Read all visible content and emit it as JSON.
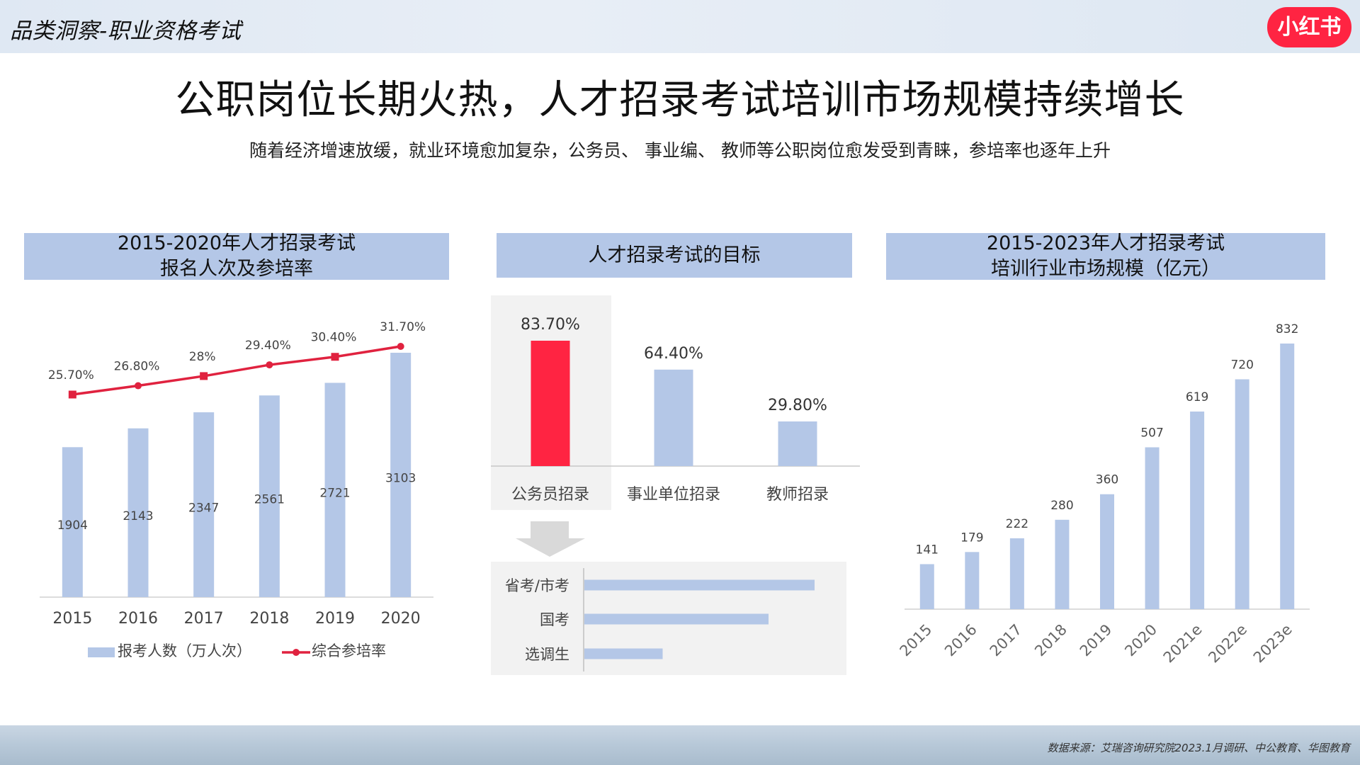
{
  "header": {
    "section_label": "品类洞察-职业资格考试",
    "logo_text": "小红书"
  },
  "headline": "公职岗位长期火热，人才招录考试培训市场规模持续增长",
  "subheadline": "随着经济增速放缓，就业环境愈加复杂，公务员、 事业编、 教师等公职岗位愈发受到青睐，参培率也逐年上升",
  "panels": {
    "left_title_line1": "2015-2020年人才招录考试",
    "left_title_line2": "报名人次及参培率",
    "middle_title": "人才招录考试的目标",
    "right_title_line1": "2015-2023年人才招录考试",
    "right_title_line2": "培训行业市场规模（亿元）"
  },
  "source": "数据来源：艾瑞咨询研究院2023.1月调研、中公教育、华图教育",
  "colors": {
    "bar_blue": "#b4c7e7",
    "line_red": "#e0223f",
    "highlight_red": "#ff2442",
    "panel_bg": "#f2f2f2"
  },
  "chart_data": [
    {
      "type": "bar",
      "categories": [
        "2015",
        "2016",
        "2017",
        "2018",
        "2019",
        "2020"
      ],
      "series": [
        {
          "name": "报考人数（万人次）",
          "type": "bar",
          "values": [
            1904,
            2143,
            2347,
            2561,
            2721,
            3103
          ],
          "labels": [
            "1904",
            "2143",
            "2347",
            "2561",
            "2721",
            "3103"
          ]
        },
        {
          "name": "综合参培率",
          "type": "line",
          "values": [
            25.7,
            26.8,
            28,
            29.4,
            30.4,
            31.7
          ],
          "labels": [
            "25.70%",
            "26.80%",
            "28%",
            "29.40%",
            "30.40%",
            "31.70%"
          ]
        }
      ],
      "legend": "bottom",
      "grid": false
    },
    {
      "type": "bar",
      "categories": [
        "公务员招录",
        "事业单位招录",
        "教师招录"
      ],
      "values": [
        83.7,
        64.4,
        29.8
      ],
      "labels": [
        "83.70%",
        "64.40%",
        "29.80%"
      ],
      "highlight": "公务员招录",
      "grid": false
    },
    {
      "type": "bar",
      "orientation": "horizontal",
      "categories": [
        "省考/市考",
        "国考",
        "选调生"
      ],
      "relative_values": [
        1.0,
        0.8,
        0.34
      ],
      "grid": false
    },
    {
      "type": "bar",
      "categories": [
        "2015",
        "2016",
        "2017",
        "2018",
        "2019",
        "2020",
        "2021e",
        "2022e",
        "2023e"
      ],
      "values": [
        141,
        179,
        222,
        280,
        360,
        507,
        619,
        720,
        832
      ],
      "labels": [
        "141",
        "179",
        "222",
        "280",
        "360",
        "507",
        "619",
        "720",
        "832"
      ],
      "grid": false
    }
  ]
}
